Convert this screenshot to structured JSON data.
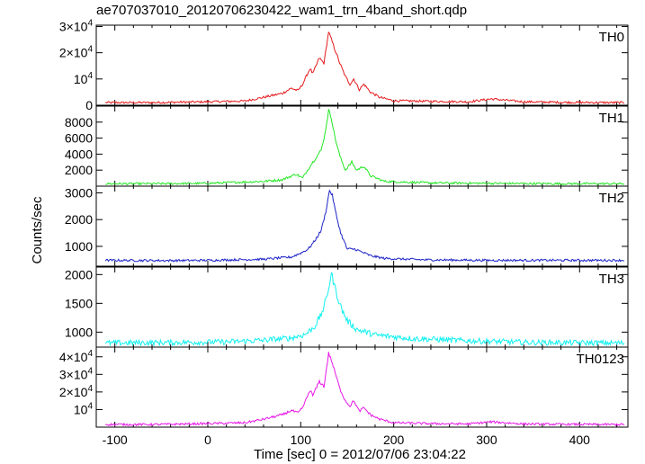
{
  "chart_data": {
    "type": "line",
    "title": "ae707037010_20120706230422_wam1_trn_4band_short.qdp",
    "xlabel": "Time [sec] 0 = 2012/07/06 23:04:22",
    "ylabel": "Counts/sec",
    "xlim": [
      -120,
      452
    ],
    "x_ticks": [
      "-100",
      "0",
      "100",
      "200",
      "300",
      "400"
    ],
    "x_tick_values": [
      -100,
      0,
      100,
      200,
      300,
      400
    ],
    "panels": [
      {
        "name": "TH0",
        "color": "#e41a1c",
        "ylim": [
          0,
          30500
        ],
        "y_ticks": [
          0,
          10000,
          20000,
          30000
        ],
        "y_tick_labels": [
          {
            "mant": "0",
            "exp": ""
          },
          {
            "mant": "10",
            "exp": "4"
          },
          {
            "mant": "2×10",
            "exp": "4"
          },
          {
            "mant": "3×10",
            "exp": "4"
          }
        ],
        "x": [
          -110,
          -60,
          0,
          40,
          60,
          80,
          90,
          97,
          102,
          110,
          113,
          120,
          125,
          130,
          133,
          137,
          142,
          148,
          153,
          157,
          163,
          168,
          175,
          185,
          200,
          240,
          280,
          305,
          340,
          380,
          420,
          450
        ],
        "y": [
          1000,
          1000,
          1300,
          1600,
          3000,
          4500,
          6500,
          5500,
          8000,
          14000,
          12000,
          18000,
          16000,
          28000,
          25000,
          21000,
          16000,
          11000,
          8000,
          10000,
          6000,
          8000,
          5000,
          3000,
          1700,
          1500,
          1300,
          2400,
          1300,
          1100,
          1000,
          1000
        ]
      },
      {
        "name": "TH1",
        "color": "#22e622",
        "ylim": [
          0,
          10000
        ],
        "y_ticks": [
          2000,
          4000,
          6000,
          8000
        ],
        "y_tick_labels": [
          {
            "mant": "2000",
            "exp": ""
          },
          {
            "mant": "4000",
            "exp": ""
          },
          {
            "mant": "6000",
            "exp": ""
          },
          {
            "mant": "8000",
            "exp": ""
          }
        ],
        "x": [
          -110,
          -60,
          0,
          60,
          80,
          95,
          102,
          110,
          116,
          122,
          126,
          130,
          133,
          137,
          142,
          148,
          155,
          160,
          168,
          175,
          190,
          240,
          300,
          380,
          450
        ],
        "y": [
          300,
          300,
          350,
          600,
          800,
          1500,
          1000,
          2500,
          3500,
          4500,
          6500,
          9500,
          8500,
          6000,
          3800,
          2000,
          3000,
          2000,
          2500,
          1300,
          600,
          400,
          350,
          300,
          300
        ]
      },
      {
        "name": "TH2",
        "color": "#1d24c7",
        "ylim": [
          260,
          3250
        ],
        "y_ticks": [
          1000,
          2000,
          3000
        ],
        "y_tick_labels": [
          {
            "mant": "1000",
            "exp": ""
          },
          {
            "mant": "2000",
            "exp": ""
          },
          {
            "mant": "3000",
            "exp": ""
          }
        ],
        "x": [
          -110,
          -40,
          0,
          60,
          90,
          100,
          108,
          115,
          122,
          127,
          131,
          134,
          138,
          143,
          150,
          158,
          165,
          175,
          190,
          230,
          300,
          380,
          450
        ],
        "y": [
          480,
          470,
          480,
          520,
          600,
          750,
          900,
          1200,
          1600,
          2300,
          3100,
          2900,
          2200,
          1500,
          900,
          900,
          800,
          650,
          550,
          500,
          480,
          480,
          480
        ]
      },
      {
        "name": "TH3",
        "color": "#11f0f0",
        "ylim": [
          740,
          2130
        ],
        "y_ticks": [
          1000,
          1500,
          2000
        ],
        "y_tick_labels": [
          {
            "mant": "1000",
            "exp": ""
          },
          {
            "mant": "1500",
            "exp": ""
          },
          {
            "mant": "2000",
            "exp": ""
          }
        ],
        "x": [
          -110,
          -40,
          20,
          60,
          90,
          105,
          115,
          122,
          128,
          133,
          138,
          144,
          150,
          160,
          180,
          220,
          280,
          350,
          450
        ],
        "y": [
          810,
          820,
          830,
          860,
          900,
          960,
          1100,
          1300,
          1600,
          2020,
          1700,
          1400,
          1200,
          1050,
          950,
          890,
          850,
          820,
          810
        ]
      },
      {
        "name": "TH0123",
        "color": "#e617e6",
        "ylim": [
          0,
          45500
        ],
        "y_ticks": [
          10000,
          20000,
          30000,
          40000
        ],
        "y_tick_labels": [
          {
            "mant": "10",
            "exp": "4"
          },
          {
            "mant": "2×10",
            "exp": "4"
          },
          {
            "mant": "3×10",
            "exp": "4"
          },
          {
            "mant": "4×10",
            "exp": "4"
          }
        ],
        "x": [
          -110,
          -60,
          0,
          40,
          60,
          80,
          90,
          97,
          102,
          110,
          113,
          120,
          125,
          130,
          133,
          137,
          142,
          148,
          153,
          157,
          163,
          168,
          175,
          185,
          200,
          240,
          280,
          305,
          340,
          380,
          420,
          450
        ],
        "y": [
          1500,
          1500,
          2000,
          2500,
          4500,
          7000,
          9500,
          8000,
          11000,
          21000,
          18000,
          26000,
          23000,
          42000,
          38000,
          31000,
          22000,
          15000,
          12000,
          15000,
          9000,
          11000,
          7000,
          4500,
          2500,
          2000,
          1800,
          3000,
          1800,
          1600,
          1500,
          1500
        ]
      }
    ]
  }
}
